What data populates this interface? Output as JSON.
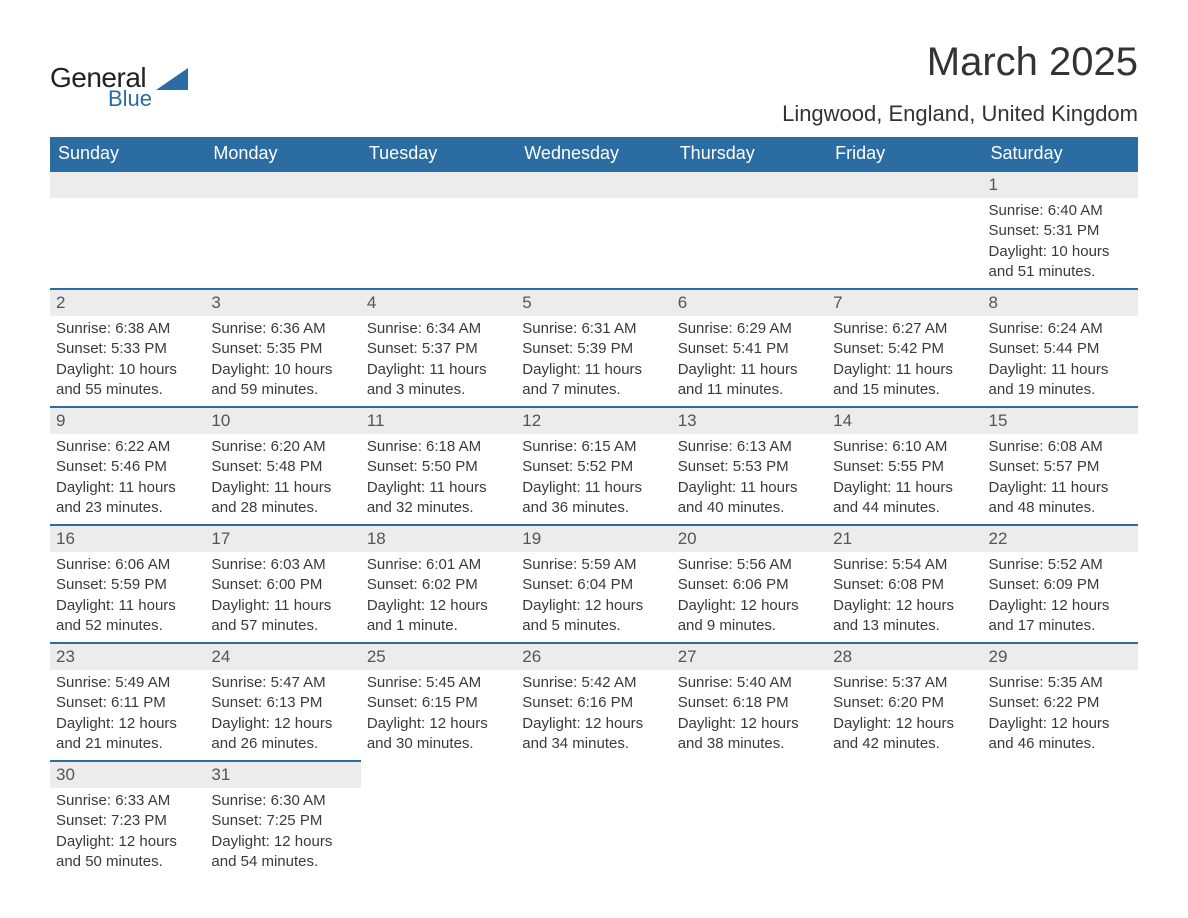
{
  "logo": {
    "text1": "General",
    "text2": "Blue",
    "triangle_color": "#2b6ca3"
  },
  "title": "March 2025",
  "location": "Lingwood, England, United Kingdom",
  "colors": {
    "header_bg": "#2b6ca3",
    "header_text": "#ffffff",
    "daynum_bg": "#ececec",
    "row_border": "#2b6ca3",
    "body_text": "#3a3a3a"
  },
  "fonts": {
    "title_size_pt": 30,
    "location_size_pt": 16,
    "weekday_size_pt": 13,
    "body_size_pt": 11
  },
  "weekdays": [
    "Sunday",
    "Monday",
    "Tuesday",
    "Wednesday",
    "Thursday",
    "Friday",
    "Saturday"
  ],
  "weeks": [
    [
      {
        "day": null
      },
      {
        "day": null
      },
      {
        "day": null
      },
      {
        "day": null
      },
      {
        "day": null
      },
      {
        "day": null
      },
      {
        "day": 1,
        "sunrise": "6:40 AM",
        "sunset": "5:31 PM",
        "daylight1": "Daylight: 10 hours",
        "daylight2": "and 51 minutes."
      }
    ],
    [
      {
        "day": 2,
        "sunrise": "6:38 AM",
        "sunset": "5:33 PM",
        "daylight1": "Daylight: 10 hours",
        "daylight2": "and 55 minutes."
      },
      {
        "day": 3,
        "sunrise": "6:36 AM",
        "sunset": "5:35 PM",
        "daylight1": "Daylight: 10 hours",
        "daylight2": "and 59 minutes."
      },
      {
        "day": 4,
        "sunrise": "6:34 AM",
        "sunset": "5:37 PM",
        "daylight1": "Daylight: 11 hours",
        "daylight2": "and 3 minutes."
      },
      {
        "day": 5,
        "sunrise": "6:31 AM",
        "sunset": "5:39 PM",
        "daylight1": "Daylight: 11 hours",
        "daylight2": "and 7 minutes."
      },
      {
        "day": 6,
        "sunrise": "6:29 AM",
        "sunset": "5:41 PM",
        "daylight1": "Daylight: 11 hours",
        "daylight2": "and 11 minutes."
      },
      {
        "day": 7,
        "sunrise": "6:27 AM",
        "sunset": "5:42 PM",
        "daylight1": "Daylight: 11 hours",
        "daylight2": "and 15 minutes."
      },
      {
        "day": 8,
        "sunrise": "6:24 AM",
        "sunset": "5:44 PM",
        "daylight1": "Daylight: 11 hours",
        "daylight2": "and 19 minutes."
      }
    ],
    [
      {
        "day": 9,
        "sunrise": "6:22 AM",
        "sunset": "5:46 PM",
        "daylight1": "Daylight: 11 hours",
        "daylight2": "and 23 minutes."
      },
      {
        "day": 10,
        "sunrise": "6:20 AM",
        "sunset": "5:48 PM",
        "daylight1": "Daylight: 11 hours",
        "daylight2": "and 28 minutes."
      },
      {
        "day": 11,
        "sunrise": "6:18 AM",
        "sunset": "5:50 PM",
        "daylight1": "Daylight: 11 hours",
        "daylight2": "and 32 minutes."
      },
      {
        "day": 12,
        "sunrise": "6:15 AM",
        "sunset": "5:52 PM",
        "daylight1": "Daylight: 11 hours",
        "daylight2": "and 36 minutes."
      },
      {
        "day": 13,
        "sunrise": "6:13 AM",
        "sunset": "5:53 PM",
        "daylight1": "Daylight: 11 hours",
        "daylight2": "and 40 minutes."
      },
      {
        "day": 14,
        "sunrise": "6:10 AM",
        "sunset": "5:55 PM",
        "daylight1": "Daylight: 11 hours",
        "daylight2": "and 44 minutes."
      },
      {
        "day": 15,
        "sunrise": "6:08 AM",
        "sunset": "5:57 PM",
        "daylight1": "Daylight: 11 hours",
        "daylight2": "and 48 minutes."
      }
    ],
    [
      {
        "day": 16,
        "sunrise": "6:06 AM",
        "sunset": "5:59 PM",
        "daylight1": "Daylight: 11 hours",
        "daylight2": "and 52 minutes."
      },
      {
        "day": 17,
        "sunrise": "6:03 AM",
        "sunset": "6:00 PM",
        "daylight1": "Daylight: 11 hours",
        "daylight2": "and 57 minutes."
      },
      {
        "day": 18,
        "sunrise": "6:01 AM",
        "sunset": "6:02 PM",
        "daylight1": "Daylight: 12 hours",
        "daylight2": "and 1 minute."
      },
      {
        "day": 19,
        "sunrise": "5:59 AM",
        "sunset": "6:04 PM",
        "daylight1": "Daylight: 12 hours",
        "daylight2": "and 5 minutes."
      },
      {
        "day": 20,
        "sunrise": "5:56 AM",
        "sunset": "6:06 PM",
        "daylight1": "Daylight: 12 hours",
        "daylight2": "and 9 minutes."
      },
      {
        "day": 21,
        "sunrise": "5:54 AM",
        "sunset": "6:08 PM",
        "daylight1": "Daylight: 12 hours",
        "daylight2": "and 13 minutes."
      },
      {
        "day": 22,
        "sunrise": "5:52 AM",
        "sunset": "6:09 PM",
        "daylight1": "Daylight: 12 hours",
        "daylight2": "and 17 minutes."
      }
    ],
    [
      {
        "day": 23,
        "sunrise": "5:49 AM",
        "sunset": "6:11 PM",
        "daylight1": "Daylight: 12 hours",
        "daylight2": "and 21 minutes."
      },
      {
        "day": 24,
        "sunrise": "5:47 AM",
        "sunset": "6:13 PM",
        "daylight1": "Daylight: 12 hours",
        "daylight2": "and 26 minutes."
      },
      {
        "day": 25,
        "sunrise": "5:45 AM",
        "sunset": "6:15 PM",
        "daylight1": "Daylight: 12 hours",
        "daylight2": "and 30 minutes."
      },
      {
        "day": 26,
        "sunrise": "5:42 AM",
        "sunset": "6:16 PM",
        "daylight1": "Daylight: 12 hours",
        "daylight2": "and 34 minutes."
      },
      {
        "day": 27,
        "sunrise": "5:40 AM",
        "sunset": "6:18 PM",
        "daylight1": "Daylight: 12 hours",
        "daylight2": "and 38 minutes."
      },
      {
        "day": 28,
        "sunrise": "5:37 AM",
        "sunset": "6:20 PM",
        "daylight1": "Daylight: 12 hours",
        "daylight2": "and 42 minutes."
      },
      {
        "day": 29,
        "sunrise": "5:35 AM",
        "sunset": "6:22 PM",
        "daylight1": "Daylight: 12 hours",
        "daylight2": "and 46 minutes."
      }
    ],
    [
      {
        "day": 30,
        "sunrise": "6:33 AM",
        "sunset": "7:23 PM",
        "daylight1": "Daylight: 12 hours",
        "daylight2": "and 50 minutes."
      },
      {
        "day": 31,
        "sunrise": "6:30 AM",
        "sunset": "7:25 PM",
        "daylight1": "Daylight: 12 hours",
        "daylight2": "and 54 minutes."
      },
      {
        "day": null
      },
      {
        "day": null
      },
      {
        "day": null
      },
      {
        "day": null
      },
      {
        "day": null
      }
    ]
  ],
  "labels": {
    "sunrise_prefix": "Sunrise: ",
    "sunset_prefix": "Sunset: "
  }
}
